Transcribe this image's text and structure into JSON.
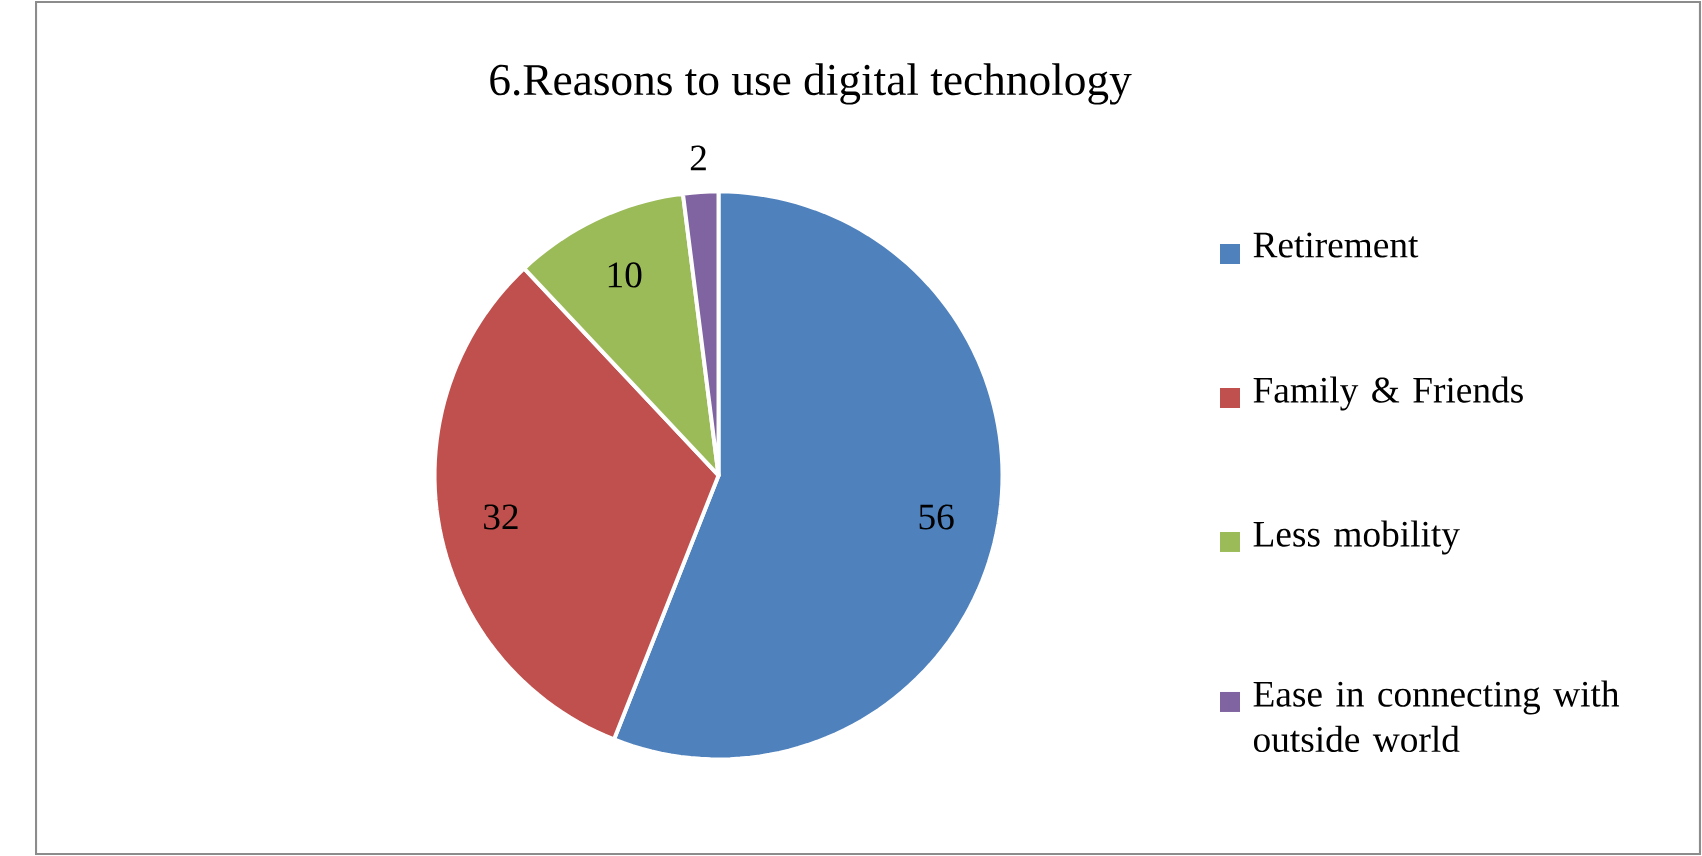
{
  "chart_data": {
    "type": "pie",
    "title": "6.Reasons to use digital technology",
    "categories": [
      "Retirement",
      "Family & Friends",
      "Less mobility",
      "Ease in connecting with outside world"
    ],
    "values": [
      56,
      32,
      10,
      2
    ],
    "colors": [
      "#4f81bd",
      "#c0504d",
      "#9bbb59",
      "#8064a2"
    ],
    "data_labels": true,
    "legend": "right"
  }
}
